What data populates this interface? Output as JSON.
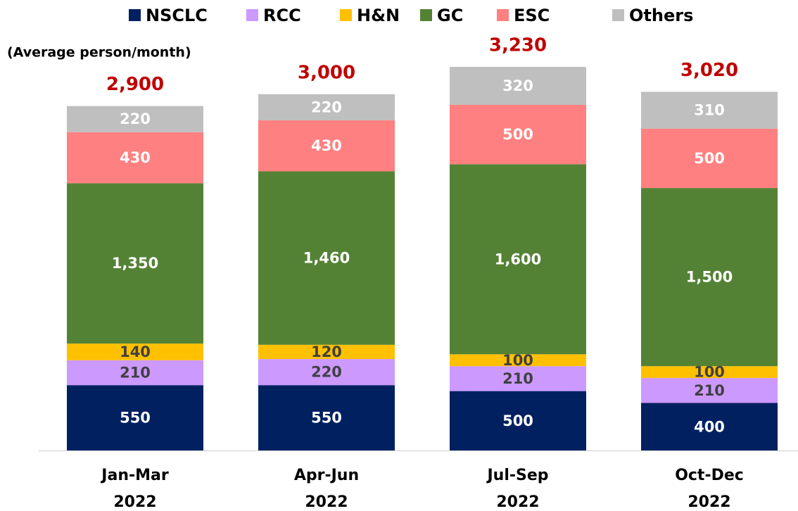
{
  "chart_data": {
    "type": "stacked_bar",
    "unit_label": "(Average person/month)",
    "categories": [
      [
        "Jan-Mar",
        "2022"
      ],
      [
        "Apr-Jun",
        "2022"
      ],
      [
        "Jul-Sep",
        "2022"
      ],
      [
        "Oct-Dec",
        "2022"
      ]
    ],
    "series": [
      {
        "name": "NSCLC",
        "color": "#002060",
        "label_color": "#ffffff",
        "values": [
          550,
          550,
          500,
          400
        ]
      },
      {
        "name": "RCC",
        "color": "#cc99ff",
        "label_color": "#404040",
        "values": [
          210,
          220,
          210,
          210
        ]
      },
      {
        "name": "H&N",
        "color": "#ffc000",
        "label_color": "#404040",
        "values": [
          140,
          120,
          100,
          100
        ]
      },
      {
        "name": "GC",
        "color": "#548235",
        "label_color": "#ffffff",
        "values": [
          1350,
          1460,
          1600,
          1500
        ],
        "value_labels": [
          "1,350",
          "1,460",
          "1,600",
          "1,500"
        ]
      },
      {
        "name": "ESC",
        "color": "#ff8080",
        "label_color": "#ffffff",
        "values": [
          430,
          430,
          500,
          500
        ]
      },
      {
        "name": "Others",
        "color": "#bfbfbf",
        "label_color": "#ffffff",
        "values": [
          220,
          220,
          320,
          310
        ]
      }
    ],
    "totals": [
      2900,
      3000,
      3230,
      3020
    ],
    "total_labels": [
      "2,900",
      "3,000",
      "3,230",
      "3,020"
    ],
    "total_color": "#c00000",
    "legend": "top"
  }
}
